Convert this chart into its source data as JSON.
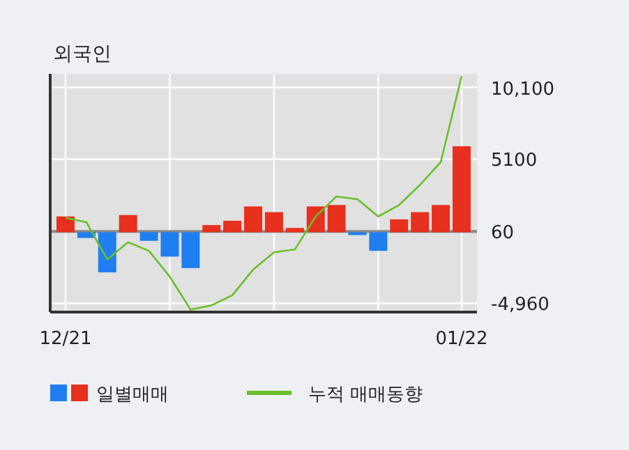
{
  "chart_data": {
    "type": "bar",
    "title": "외국인",
    "categories": [
      "12/21",
      null,
      null,
      null,
      null,
      null,
      null,
      null,
      null,
      null,
      null,
      null,
      null,
      null,
      null,
      null,
      null,
      null,
      null,
      "01/22"
    ],
    "series": [
      {
        "name": "일별매매",
        "colors": [
          "#e8301e",
          "#1f7ef0",
          "#1f7ef0",
          "#e8301e",
          "#1f7ef0",
          "#1f7ef0",
          "#1f7ef0",
          "#e8301e",
          "#e8301e",
          "#e8301e",
          "#e8301e",
          "#e8301e",
          "#e8301e",
          "#e8301e",
          "#1f7ef0",
          "#1f7ef0",
          "#e8301e",
          "#e8301e",
          "#e8301e",
          "#e8301e"
        ],
        "values": [
          1100,
          -400,
          -2800,
          1200,
          -600,
          -1700,
          -2500,
          500,
          800,
          1800,
          1400,
          300,
          1800,
          1900,
          -200,
          -1300,
          900,
          1400,
          1900,
          6000
        ]
      },
      {
        "name": "누적 매매동향",
        "type": "line",
        "color": "#6abf2a",
        "values": [
          1000,
          700,
          -1900,
          -700,
          -1300,
          -3100,
          -5400,
          -5100,
          -4400,
          -2600,
          -1400,
          -1200,
          1100,
          2500,
          2300,
          1100,
          1900,
          3300,
          4900,
          10900
        ]
      }
    ],
    "ylim": [
      -5570,
      11050
    ],
    "yticks": [
      {
        "value": 10100,
        "label": "10,100"
      },
      5100,
      60,
      {
        "value": -4960,
        "label": "-4,960"
      }
    ],
    "ref_lines": [
      {
        "axis": "y",
        "value": 60,
        "color": "#888888"
      }
    ],
    "grid": true,
    "legend": "bottom"
  }
}
